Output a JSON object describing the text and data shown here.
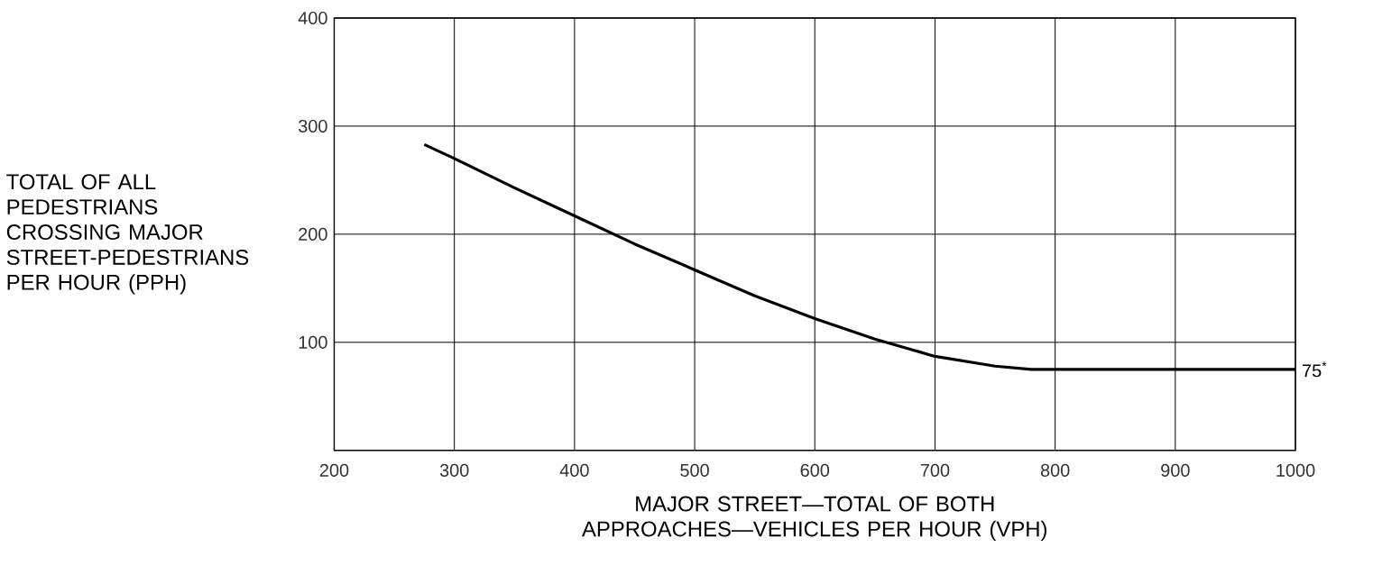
{
  "chart_data": {
    "type": "line",
    "ylabel": "TOTAL OF ALL PEDESTRIANS CROSSING MAJOR STREET-PEDESTRIANS PER HOUR (PPH)",
    "xlabel": "MAJOR STREET—TOTAL OF BOTH APPROACHES—VEHICLES PER HOUR (VPH)",
    "x": [
      275,
      300,
      350,
      400,
      450,
      500,
      550,
      600,
      650,
      700,
      750,
      780,
      800,
      900,
      1000
    ],
    "series": [
      {
        "color": "#000000",
        "values": [
          283,
          270,
          243,
          217,
          191,
          167,
          143,
          122,
          103,
          87,
          78,
          75,
          75,
          75,
          75
        ]
      }
    ],
    "xlim": [
      200,
      1000
    ],
    "xticks": [
      200,
      300,
      400,
      500,
      600,
      700,
      800,
      900,
      1000
    ],
    "ylim": [
      0,
      400
    ],
    "yticks": [
      100,
      200,
      300,
      400
    ],
    "grid": true,
    "marker": "none",
    "line_style": "solid",
    "annotations": [
      {
        "text": "75$^{*}$",
        "x": 1000,
        "y": 75
      }
    ]
  }
}
